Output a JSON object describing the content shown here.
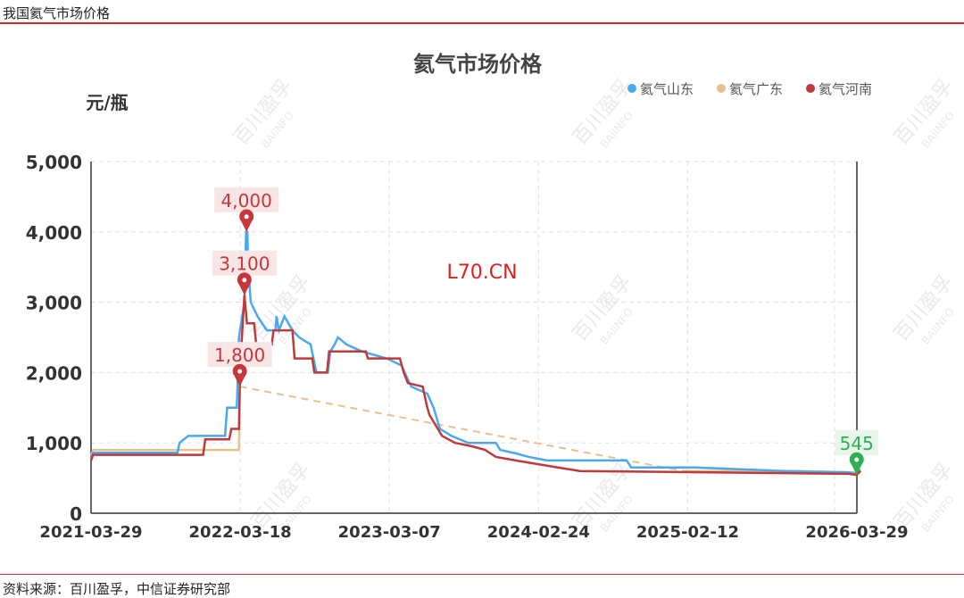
{
  "header": {
    "title": "我国氦气市场价格"
  },
  "footer": {
    "source": "资料来源：百川盈孚，中信证券研究部"
  },
  "watermark": {
    "cn": "百川盈孚",
    "en": "BAIINFO",
    "overlay": "L70.CN"
  },
  "chart_data": {
    "type": "line",
    "title": "氦气市场价格",
    "ylabel": "元/瓶",
    "xlabel": "",
    "ylim": [
      0,
      5000
    ],
    "yticks": [
      "0",
      "1,000",
      "2,000",
      "3,000",
      "4,000",
      "5,000"
    ],
    "ytick_values": [
      0,
      1000,
      2000,
      3000,
      4000,
      5000
    ],
    "xlim": [
      "2021-03-29",
      "2026-03-29"
    ],
    "xticks": [
      "2021-03-29",
      "2022-03-18",
      "2023-03-07",
      "2024-02-24",
      "2025-02-12",
      "2026-03-29"
    ],
    "grid": true,
    "legend": "top-right",
    "colors": {
      "氦气山东": "#4aa8ee",
      "氦气广东": "#e8c28c",
      "氦气河南": "#c0393b",
      "markpoint": "#c8353a",
      "markpoint_last": "#2fb050"
    },
    "series": [
      {
        "name": "氦气山东",
        "points": [
          [
            "2021-03-29",
            780
          ],
          [
            "2021-04-03",
            860
          ],
          [
            "2021-10-20",
            860
          ],
          [
            "2021-10-25",
            1000
          ],
          [
            "2021-11-15",
            1100
          ],
          [
            "2022-02-10",
            1100
          ],
          [
            "2022-02-15",
            1500
          ],
          [
            "2022-03-10",
            1500
          ],
          [
            "2022-03-15",
            2500
          ],
          [
            "2022-03-28",
            3000
          ],
          [
            "2022-04-01",
            4000
          ],
          [
            "2022-04-04",
            4000
          ],
          [
            "2022-04-06",
            3500
          ],
          [
            "2022-04-12",
            3000
          ],
          [
            "2022-04-28",
            2800
          ],
          [
            "2022-05-20",
            2600
          ],
          [
            "2022-06-10",
            2600
          ],
          [
            "2022-06-12",
            2800
          ],
          [
            "2022-06-18",
            2600
          ],
          [
            "2022-07-01",
            2800
          ],
          [
            "2022-07-20",
            2600
          ],
          [
            "2022-08-05",
            2500
          ],
          [
            "2022-09-01",
            2400
          ],
          [
            "2022-09-15",
            2000
          ],
          [
            "2022-10-12",
            2000
          ],
          [
            "2022-10-18",
            2300
          ],
          [
            "2022-10-28",
            2400
          ],
          [
            "2022-11-05",
            2500
          ],
          [
            "2022-11-25",
            2400
          ],
          [
            "2023-01-01",
            2300
          ],
          [
            "2023-03-01",
            2200
          ],
          [
            "2023-04-05",
            2100
          ],
          [
            "2023-04-20",
            1900
          ],
          [
            "2023-04-28",
            1800
          ],
          [
            "2023-06-05",
            1700
          ],
          [
            "2023-06-20",
            1500
          ],
          [
            "2023-07-05",
            1200
          ],
          [
            "2023-08-01",
            1100
          ],
          [
            "2023-09-10",
            1000
          ],
          [
            "2023-11-15",
            1000
          ],
          [
            "2023-11-25",
            900
          ],
          [
            "2024-01-01",
            850
          ],
          [
            "2024-02-01",
            800
          ],
          [
            "2024-03-15",
            750
          ],
          [
            "2024-09-20",
            750
          ],
          [
            "2024-10-01",
            650
          ],
          [
            "2025-03-01",
            650
          ],
          [
            "2025-10-01",
            600
          ],
          [
            "2026-03-01",
            580
          ],
          [
            "2026-03-20",
            560
          ],
          [
            "2026-03-29",
            620
          ]
        ]
      },
      {
        "name": "氦气广东",
        "points": [
          [
            "2021-03-29",
            820
          ],
          [
            "2021-04-03",
            900
          ],
          [
            "2022-03-15",
            900
          ],
          [
            "2022-03-17",
            1800
          ],
          null,
          [
            "2025-02-01",
            600
          ],
          [
            "2025-10-01",
            600
          ],
          [
            "2026-03-29",
            580
          ]
        ]
      },
      {
        "name": "氦气河南",
        "points": [
          [
            "2021-03-29",
            750
          ],
          [
            "2021-04-03",
            830
          ],
          [
            "2021-12-20",
            830
          ],
          [
            "2021-12-25",
            1050
          ],
          [
            "2022-02-20",
            1050
          ],
          [
            "2022-02-25",
            1200
          ],
          [
            "2022-03-15",
            1200
          ],
          [
            "2022-03-17",
            1800
          ],
          [
            "2022-03-22",
            2500
          ],
          [
            "2022-03-28",
            3100
          ],
          [
            "2022-04-03",
            2700
          ],
          [
            "2022-04-20",
            2700
          ],
          [
            "2022-04-25",
            2400
          ],
          [
            "2022-06-01",
            2400
          ],
          [
            "2022-06-05",
            2600
          ],
          [
            "2022-07-20",
            2600
          ],
          [
            "2022-07-25",
            2200
          ],
          [
            "2022-09-05",
            2200
          ],
          [
            "2022-09-10",
            2000
          ],
          [
            "2022-10-10",
            2000
          ],
          [
            "2022-10-15",
            2300
          ],
          [
            "2023-01-10",
            2300
          ],
          [
            "2023-01-15",
            2200
          ],
          [
            "2023-04-01",
            2200
          ],
          [
            "2023-04-10",
            2000
          ],
          [
            "2023-04-20",
            1850
          ],
          [
            "2023-05-25",
            1800
          ],
          [
            "2023-06-05",
            1500
          ],
          [
            "2023-06-10",
            1400
          ],
          [
            "2023-07-10",
            1100
          ],
          [
            "2023-08-10",
            1000
          ],
          [
            "2023-09-20",
            950
          ],
          [
            "2023-10-20",
            900
          ],
          [
            "2023-11-15",
            800
          ],
          [
            "2024-01-01",
            750
          ],
          [
            "2024-02-20",
            700
          ],
          [
            "2024-04-10",
            650
          ],
          [
            "2024-06-01",
            600
          ],
          [
            "2026-03-01",
            560
          ],
          [
            "2026-03-20",
            545
          ],
          [
            "2026-03-29",
            600
          ]
        ]
      }
    ],
    "annotations": [
      {
        "date": "2022-04-02",
        "value": 4000,
        "label": "4,000",
        "kind": "markpoint"
      },
      {
        "date": "2022-03-28",
        "value": 3100,
        "label": "3,100",
        "kind": "markpoint"
      },
      {
        "date": "2022-03-17",
        "value": 1800,
        "label": "1,800",
        "kind": "markpoint"
      },
      {
        "date": "2026-03-20",
        "value": 545,
        "label": "545",
        "kind": "markpoint_last"
      }
    ]
  }
}
